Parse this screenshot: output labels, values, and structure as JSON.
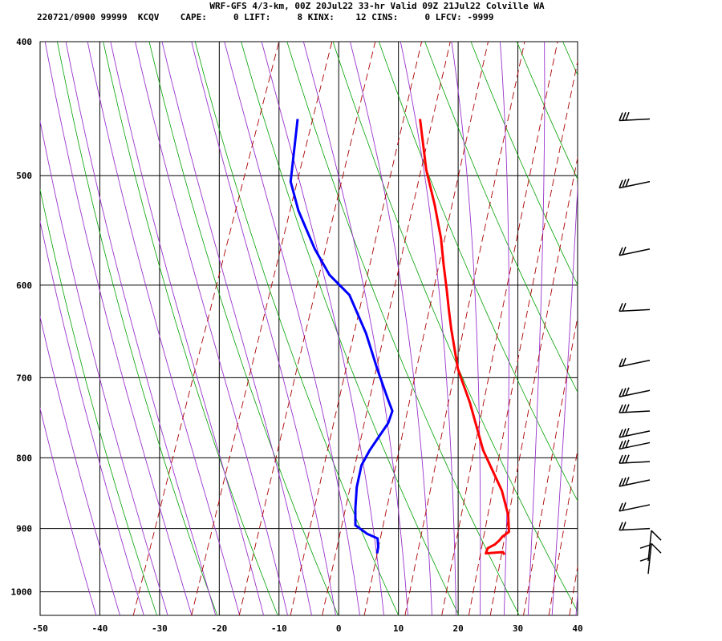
{
  "header": {
    "title": "WRF-GFS 4/3-km, 00Z 20Jul22 33-hr Valid 09Z 21Jul22 Colville WA",
    "station_line": "220721/0900 99999  KCQV    CAPE:     0 LIFT:     8 KINX:    12 CINS:     0 LFCV: -9999"
  },
  "colors": {
    "temperature": "#ff0000",
    "dewpoint": "#0000ff",
    "dry_adiabat": "#00a000",
    "moist_adiabat": "#9933cc",
    "mixing_ratio": "#aa0000",
    "grid": "#000000",
    "wind_barb": "#000000"
  },
  "chart_data": {
    "type": "line",
    "subtype": "skew-t log-p sounding",
    "xlabel": "",
    "ylabel": "",
    "xlim": [
      -50,
      40
    ],
    "ylim": [
      1040,
      400
    ],
    "y_scale": "log",
    "grid": true,
    "x_ticks": [
      "-50",
      "-40",
      "-30",
      "-20",
      "-10",
      "0",
      "10",
      "20",
      "30",
      "40"
    ],
    "y_ticks": [
      "400",
      "500",
      "600",
      "700",
      "800",
      "900",
      "1000"
    ],
    "series": [
      {
        "key": "temperature",
        "x": [
          24.2,
          23.8,
          21.0,
          21.0,
          22.0,
          22.5,
          22.8,
          23.6,
          22.5,
          20.0,
          14.5,
          9.5,
          5.5,
          2.0,
          0.5,
          -1.0,
          -3.0,
          -5.0,
          -8.0,
          -11.5,
          -15.5
        ],
        "y": [
          940,
          936,
          938,
          930,
          924,
          918,
          912,
          905,
          880,
          845,
          790,
          730,
          690,
          645,
          625,
          605,
          580,
          555,
          525,
          495,
          455
        ]
      },
      {
        "key": "dewpoint",
        "x": [
          2.8,
          2.6,
          2.0,
          0.0,
          -2.5,
          -3.5,
          -4.5,
          -5.0,
          -4.5,
          -3.0,
          -3.0,
          -4.5,
          -8.0,
          -12.0,
          -17.0,
          -21.5,
          -25.5,
          -30.5,
          -33.5,
          -36.0
        ],
        "y": [
          938,
          928,
          915,
          908,
          895,
          870,
          840,
          810,
          790,
          755,
          740,
          725,
          690,
          650,
          610,
          590,
          565,
          530,
          505,
          455
        ]
      }
    ],
    "wind_profile_pressures": [
      455,
      505,
      565,
      625,
      680,
      715,
      740,
      765,
      780,
      805,
      830,
      865,
      900,
      925,
      945
    ]
  }
}
